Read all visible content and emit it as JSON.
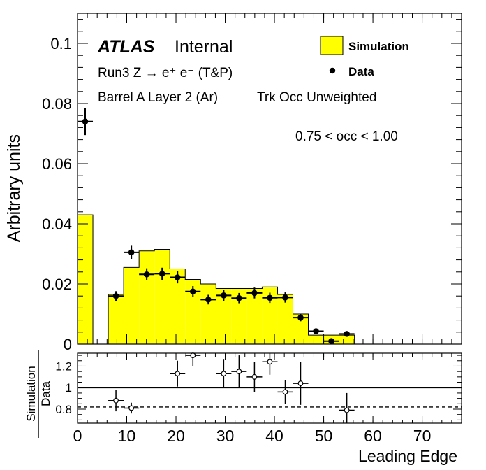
{
  "chart_data": [
    {
      "type": "bar",
      "role": "main",
      "ylabel": "Arbitrary units",
      "xlim": [
        0,
        78
      ],
      "ylim": [
        0,
        0.11
      ],
      "yticks": [
        0,
        0.02,
        0.04,
        0.06,
        0.08,
        0.1
      ],
      "ytick_labels": [
        "0",
        "0.02",
        "0.04",
        "0.06",
        "0.08",
        "0.1"
      ],
      "atlas": "ATLAS",
      "atlas_tag": "Internal",
      "lines": [
        "Run3 Z → e⁺ e⁻ (T&P)",
        "Barrel A Layer 2 (Ar)",
        "Trk Occ Unweighted",
        "0.75 < occ < 1.00"
      ],
      "legend_position": "top-right",
      "simulation": {
        "name": "Simulation",
        "color": "#ffff00",
        "bin_edges": [
          0,
          3.125,
          6.25,
          9.375,
          12.5,
          15.625,
          18.75,
          21.875,
          25,
          28.125,
          31.25,
          34.375,
          37.5,
          40.625,
          43.75,
          46.875,
          50,
          53.125,
          56.25
        ],
        "values": [
          0.043,
          0,
          0.0165,
          0.0255,
          0.031,
          0.0315,
          0.025,
          0.0215,
          0.02,
          0.0185,
          0.0185,
          0.0185,
          0.019,
          0.0165,
          0.01,
          0.003,
          0.003,
          0.003
        ]
      },
      "data": {
        "name": "Data",
        "color": "#000000",
        "x": [
          1.56,
          7.81,
          10.94,
          14.06,
          17.19,
          20.31,
          23.44,
          26.56,
          29.69,
          32.81,
          35.94,
          39.06,
          42.19,
          45.31,
          48.44,
          51.56,
          54.69
        ],
        "y": [
          0.074,
          0.016,
          0.0305,
          0.0232,
          0.0234,
          0.0222,
          0.0175,
          0.0148,
          0.0162,
          0.0153,
          0.017,
          0.0154,
          0.0155,
          0.0088,
          0.0043,
          0.001,
          0.0034
        ],
        "yerr": [
          0.0045,
          0.0016,
          0.0022,
          0.002,
          0.002,
          0.002,
          0.0018,
          0.0016,
          0.0018,
          0.0017,
          0.0018,
          0.0017,
          0.0017,
          0.0012,
          0.0009,
          0.0005,
          0.0007
        ]
      }
    },
    {
      "type": "scatter",
      "role": "ratio",
      "xlabel": "Leading Edge",
      "ylabel_top": "Simulation",
      "ylabel_bottom": "Data",
      "xlim": [
        0,
        78
      ],
      "ylim": [
        0.67,
        1.32
      ],
      "xticks": [
        0,
        10,
        20,
        30,
        40,
        50,
        60,
        70
      ],
      "xtick_labels": [
        "0",
        "10",
        "20",
        "30",
        "40",
        "50",
        "60",
        "70"
      ],
      "yticks": [
        0.8,
        1,
        1.2
      ],
      "ytick_labels": [
        "0.8",
        "1",
        "1.2"
      ],
      "reference_line": 1,
      "dashed_line": 0.82,
      "x": [
        7.81,
        10.94,
        20.31,
        23.44,
        29.69,
        32.81,
        35.94,
        39.06,
        42.19,
        45.31,
        54.69
      ],
      "y": [
        0.88,
        0.81,
        1.13,
        1.3,
        1.13,
        1.15,
        1.1,
        1.24,
        0.96,
        1.04,
        0.79
      ],
      "yerr": [
        0.1,
        0.05,
        0.12,
        0.1,
        0.13,
        0.15,
        0.14,
        0.12,
        0.11,
        0.2,
        0.16
      ]
    }
  ]
}
